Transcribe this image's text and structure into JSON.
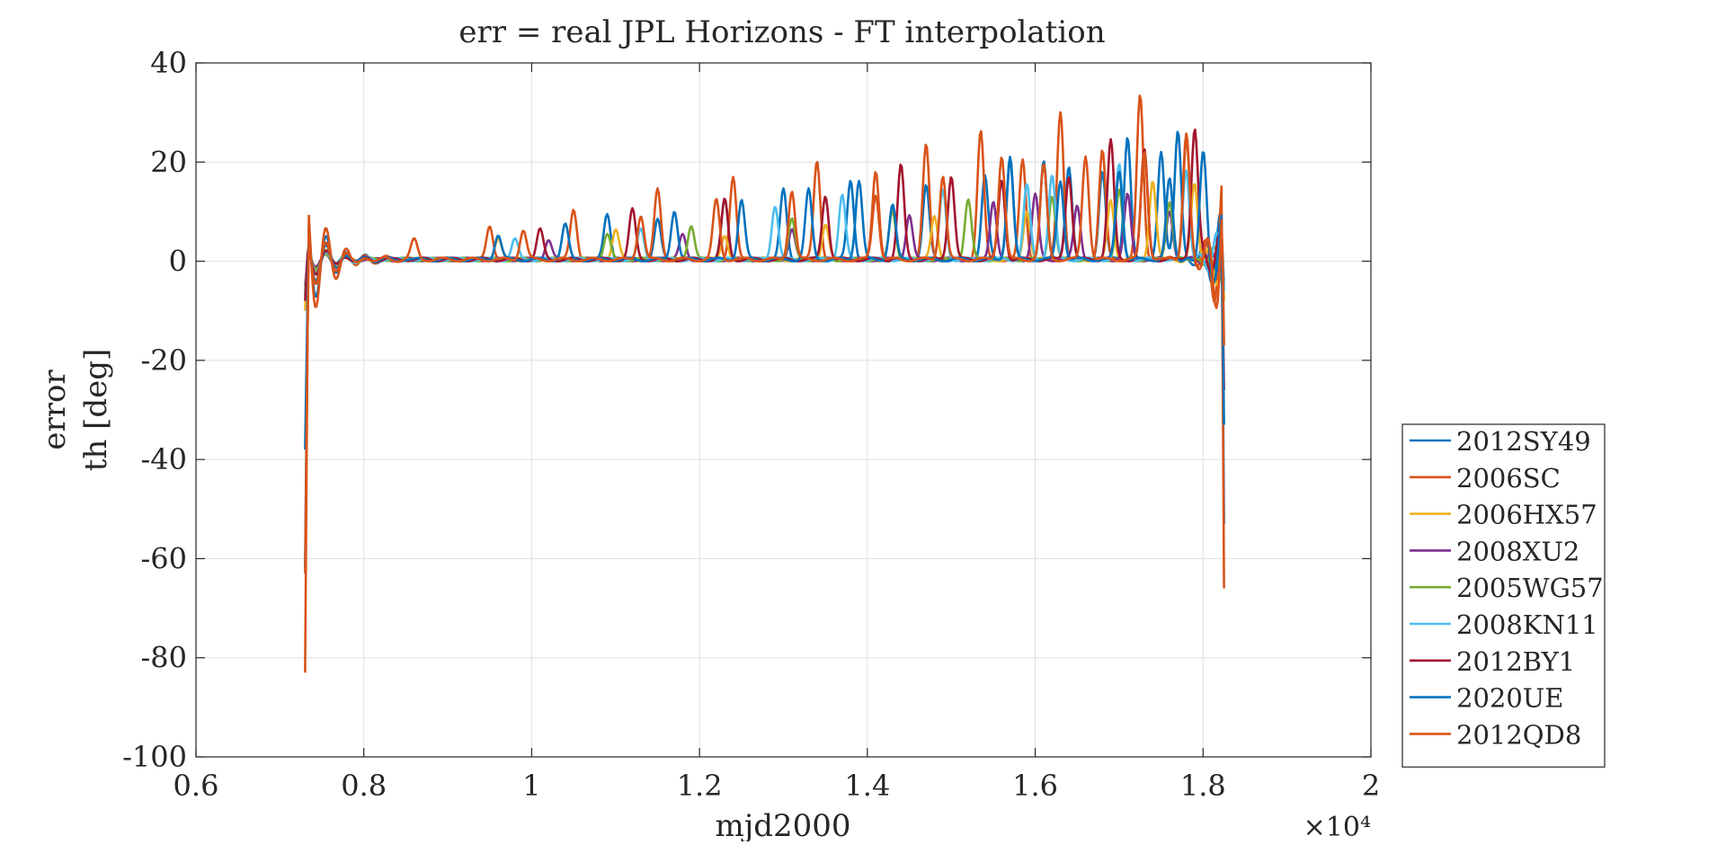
{
  "chart_data": {
    "type": "line",
    "title": "err = real JPL Horizons - FT interpolation",
    "xlabel": "mjd2000",
    "ylabel_lines": [
      "error",
      "th [deg]"
    ],
    "x_tick_labels": [
      "0.6",
      "0.8",
      "1",
      "1.2",
      "1.4",
      "1.6",
      "1.8",
      "2"
    ],
    "x_exponent_label": "×10⁴",
    "x_tick_values": [
      6000,
      8000,
      10000,
      12000,
      14000,
      16000,
      18000,
      20000
    ],
    "y_tick_labels": [
      "40",
      "20",
      "0",
      "-20",
      "-40",
      "-60",
      "-80",
      "-100"
    ],
    "y_tick_values": [
      40,
      20,
      0,
      -20,
      -40,
      -60,
      -80,
      -100
    ],
    "xlim": [
      6000,
      20000
    ],
    "ylim": [
      -100,
      40
    ],
    "grid": true,
    "legend_position": "outside-right",
    "series": [
      {
        "name": "2012SY49",
        "color": "#0072BD",
        "x_start": 7300,
        "x_end": 18250,
        "edge_low": -62,
        "edge_high": 16,
        "end_low": -53,
        "end_high": 25,
        "peaks": [
          [
            10900,
            9
          ],
          [
            11500,
            8
          ],
          [
            12300,
            12
          ],
          [
            13000,
            14
          ],
          [
            13800,
            16
          ],
          [
            14700,
            15
          ],
          [
            15400,
            17
          ],
          [
            15700,
            21
          ],
          [
            16100,
            20
          ],
          [
            16400,
            19
          ],
          [
            16800,
            18
          ],
          [
            17100,
            25
          ],
          [
            17500,
            22
          ],
          [
            17700,
            26
          ]
        ]
      },
      {
        "name": "2006SC",
        "color": "#D95319",
        "x_start": 7300,
        "x_end": 18250,
        "edge_low": -83,
        "edge_high": 21,
        "end_low": -66,
        "end_high": 35,
        "peaks": [
          [
            9500,
            7
          ],
          [
            10500,
            10
          ],
          [
            11500,
            14
          ],
          [
            12400,
            17
          ],
          [
            13400,
            20
          ],
          [
            14100,
            13
          ],
          [
            14700,
            23
          ],
          [
            15350,
            26
          ],
          [
            15850,
            20
          ],
          [
            16300,
            30
          ],
          [
            16800,
            22
          ],
          [
            17250,
            33
          ],
          [
            17800,
            25
          ]
        ]
      },
      {
        "name": "2006HX57",
        "color": "#EDB120",
        "x_start": 7300,
        "x_end": 18250,
        "edge_low": -10,
        "edge_high": 6,
        "end_low": -8,
        "end_high": 18,
        "peaks": [
          [
            9600,
            4
          ],
          [
            11000,
            6
          ],
          [
            12300,
            5
          ],
          [
            13500,
            7
          ],
          [
            14800,
            9
          ],
          [
            15900,
            10
          ],
          [
            16900,
            12
          ],
          [
            17400,
            16
          ],
          [
            17900,
            15
          ]
        ]
      },
      {
        "name": "2008XU2",
        "color": "#7E2F8E",
        "x_start": 7300,
        "x_end": 18250,
        "edge_low": -5,
        "edge_high": 4,
        "end_low": -4,
        "end_high": 8,
        "peaks": [
          [
            10200,
            4
          ],
          [
            11800,
            5
          ],
          [
            13100,
            6
          ],
          [
            14500,
            9
          ],
          [
            15500,
            12
          ],
          [
            16000,
            13
          ],
          [
            16500,
            11
          ],
          [
            17100,
            13
          ],
          [
            17600,
            10
          ]
        ]
      },
      {
        "name": "2005WG57",
        "color": "#77AC30",
        "x_start": 7300,
        "x_end": 18250,
        "edge_low": -6,
        "edge_high": 5,
        "end_low": -5,
        "end_high": 10,
        "peaks": [
          [
            10900,
            5
          ],
          [
            11900,
            7
          ],
          [
            13100,
            8
          ],
          [
            14300,
            10
          ],
          [
            15200,
            12
          ],
          [
            16200,
            13
          ],
          [
            17000,
            14
          ],
          [
            17600,
            12
          ]
        ]
      },
      {
        "name": "2008KN11",
        "color": "#4DBEEE",
        "x_start": 7300,
        "x_end": 18250,
        "edge_low": -7,
        "edge_high": 6,
        "end_low": -6,
        "end_high": 19,
        "peaks": [
          [
            9800,
            4
          ],
          [
            11300,
            6
          ],
          [
            12900,
            11
          ],
          [
            13700,
            13
          ],
          [
            14900,
            14
          ],
          [
            15900,
            15
          ],
          [
            16200,
            17
          ],
          [
            17000,
            19
          ],
          [
            17800,
            18
          ]
        ]
      },
      {
        "name": "2012BY1",
        "color": "#A2142F",
        "x_start": 7300,
        "x_end": 18250,
        "edge_low": -8,
        "edge_high": 6,
        "end_low": -26,
        "end_high": 15,
        "peaks": [
          [
            10100,
            6
          ],
          [
            11200,
            10
          ],
          [
            12300,
            12
          ],
          [
            13500,
            13
          ],
          [
            14400,
            19
          ],
          [
            15000,
            17
          ],
          [
            15600,
            16
          ],
          [
            16400,
            17
          ],
          [
            16900,
            24
          ],
          [
            17300,
            22
          ],
          [
            17900,
            27
          ]
        ]
      },
      {
        "name": "2020UE",
        "color": "#0072BD",
        "x_start": 7300,
        "x_end": 18250,
        "edge_low": -38,
        "edge_high": 9,
        "end_low": -33,
        "end_high": 20,
        "peaks": [
          [
            9600,
            5
          ],
          [
            10400,
            7
          ],
          [
            11700,
            10
          ],
          [
            12500,
            12
          ],
          [
            13300,
            14
          ],
          [
            13900,
            16
          ],
          [
            14300,
            11
          ],
          [
            15700,
            20
          ],
          [
            16300,
            16
          ],
          [
            17000,
            18
          ],
          [
            17600,
            16
          ],
          [
            18000,
            20
          ]
        ]
      },
      {
        "name": "2012QD8",
        "color": "#D95319",
        "x_start": 7300,
        "x_end": 18250,
        "edge_low": -63,
        "edge_high": 11,
        "end_low": -17,
        "end_high": 35,
        "peaks": [
          [
            8600,
            4
          ],
          [
            9900,
            6
          ],
          [
            11300,
            9
          ],
          [
            12200,
            12
          ],
          [
            13100,
            14
          ],
          [
            14100,
            18
          ],
          [
            14900,
            17
          ],
          [
            15600,
            21
          ],
          [
            16100,
            19
          ],
          [
            16600,
            21
          ],
          [
            17300,
            22
          ],
          [
            17800,
            24
          ]
        ]
      }
    ]
  }
}
